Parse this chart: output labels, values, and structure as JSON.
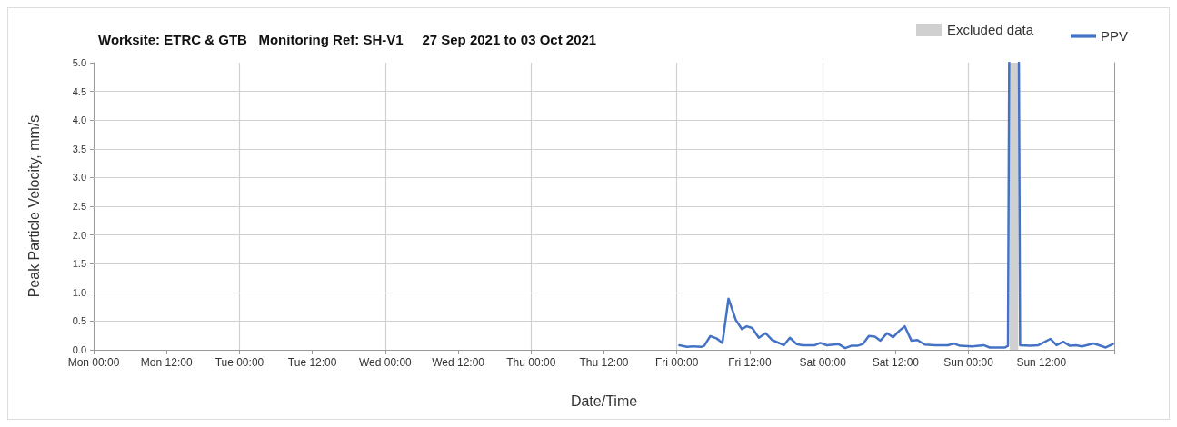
{
  "chart_data": {
    "type": "line",
    "title": "Worksite: ETRC & GTB   Monitoring Ref: SH-V1     27 Sep 2021 to 03 Oct 2021",
    "xlabel": "Date/Time",
    "ylabel": "Peak Particle Velocity, mm/s",
    "x": [
      "2021-10-01T00:24",
      "2021-10-01T01:42",
      "2021-10-01T02:42",
      "2021-10-01T04:00",
      "2021-10-01T04:30",
      "2021-10-01T05:30",
      "2021-10-01T06:30",
      "2021-10-01T07:30",
      "2021-10-01T08:30",
      "2021-10-01T09:42",
      "2021-10-01T10:42",
      "2021-10-01T11:30",
      "2021-10-01T12:24",
      "2021-10-01T13:30",
      "2021-10-01T14:36",
      "2021-10-01T15:42",
      "2021-10-01T17:36",
      "2021-10-01T18:36",
      "2021-10-01T19:42",
      "2021-10-01T20:42",
      "2021-10-01T22:42",
      "2021-10-01T23:36",
      "2021-10-02T00:42",
      "2021-10-02T02:36",
      "2021-10-02T03:42",
      "2021-10-02T04:42",
      "2021-10-02T05:42",
      "2021-10-02T06:36",
      "2021-10-02T07:36",
      "2021-10-02T08:36",
      "2021-10-02T09:30",
      "2021-10-02T10:36",
      "2021-10-02T11:36",
      "2021-10-02T12:36",
      "2021-10-02T13:30",
      "2021-10-02T14:36",
      "2021-10-02T15:36",
      "2021-10-02T16:48",
      "2021-10-02T18:30",
      "2021-10-02T20:36",
      "2021-10-02T21:36",
      "2021-10-02T22:36",
      "2021-10-03T00:36",
      "2021-10-03T02:30",
      "2021-10-03T03:30",
      "2021-10-03T06:00",
      "2021-10-03T06:30",
      "2021-10-03T06:42",
      "2021-10-03T07:30",
      "2021-10-03T08:18",
      "2021-10-03T08:30",
      "2021-10-03T10:12",
      "2021-10-03T11:30",
      "2021-10-03T13:30",
      "2021-10-03T14:30",
      "2021-10-03T15:36",
      "2021-10-03T16:42",
      "2021-10-03T17:42",
      "2021-10-03T18:42",
      "2021-10-03T20:36",
      "2021-10-03T21:30",
      "2021-10-03T22:36",
      "2021-10-03T23:48"
    ],
    "series": [
      {
        "name": "PPV",
        "color": "#4472c4",
        "values": [
          0.08,
          0.05,
          0.06,
          0.05,
          0.07,
          0.24,
          0.2,
          0.12,
          0.89,
          0.52,
          0.36,
          0.41,
          0.38,
          0.21,
          0.29,
          0.17,
          0.08,
          0.21,
          0.1,
          0.08,
          0.08,
          0.12,
          0.08,
          0.1,
          0.03,
          0.07,
          0.07,
          0.1,
          0.24,
          0.23,
          0.16,
          0.29,
          0.22,
          0.33,
          0.41,
          0.16,
          0.17,
          0.09,
          0.08,
          0.08,
          0.11,
          0.07,
          0.06,
          0.08,
          0.04,
          0.04,
          0.07,
          5,
          null,
          5,
          0.08,
          0.07,
          0.08,
          0.19,
          0.08,
          0.14,
          0.07,
          0.08,
          0.06,
          0.11,
          0.08,
          0.04,
          0.1
        ]
      }
    ],
    "bands": [
      {
        "axis": "x",
        "from": "2021-10-03T06:48",
        "to": "2021-10-03T08:12",
        "label": "Excluded data",
        "color": "#d0d0d0"
      }
    ],
    "xlim": [
      "2021-09-27T00:00",
      "2021-10-04T00:00"
    ],
    "xticks": [
      {
        "value": "2021-09-27T00:00",
        "label": "Mon 00:00"
      },
      {
        "value": "2021-09-27T12:00",
        "label": "Mon 12:00"
      },
      {
        "value": "2021-09-28T00:00",
        "label": "Tue 00:00"
      },
      {
        "value": "2021-09-28T12:00",
        "label": "Tue 12:00"
      },
      {
        "value": "2021-09-29T00:00",
        "label": "Wed 00:00"
      },
      {
        "value": "2021-09-29T12:00",
        "label": "Wed 12:00"
      },
      {
        "value": "2021-09-30T00:00",
        "label": "Thu 00:00"
      },
      {
        "value": "2021-09-30T12:00",
        "label": "Thu 12:00"
      },
      {
        "value": "2021-10-01T00:00",
        "label": "Fri 00:00"
      },
      {
        "value": "2021-10-01T12:00",
        "label": "Fri 12:00"
      },
      {
        "value": "2021-10-02T00:00",
        "label": "Sat 00:00"
      },
      {
        "value": "2021-10-02T12:00",
        "label": "Sat 12:00"
      },
      {
        "value": "2021-10-03T00:00",
        "label": "Sun 00:00"
      },
      {
        "value": "2021-10-03T12:00",
        "label": "Sun 12:00"
      },
      {
        "value": "2021-10-04T00:00",
        "label": null
      }
    ],
    "ylim": [
      0,
      5
    ],
    "yticks": [
      {
        "value": 0,
        "label": "0.0"
      },
      {
        "value": 0.5,
        "label": "0.5"
      },
      {
        "value": 1,
        "label": "1.0"
      },
      {
        "value": 1.5,
        "label": "1.5"
      },
      {
        "value": 2,
        "label": "2.0"
      },
      {
        "value": 2.5,
        "label": "2.5"
      },
      {
        "value": 3,
        "label": "3.0"
      },
      {
        "value": 3.5,
        "label": "3.5"
      },
      {
        "value": 4,
        "label": "4.0"
      },
      {
        "value": 4.5,
        "label": "4.5"
      },
      {
        "value": 5,
        "label": "5.0"
      }
    ],
    "grid": true,
    "legend": "top right",
    "marker": "none",
    "line_style": "solid"
  }
}
